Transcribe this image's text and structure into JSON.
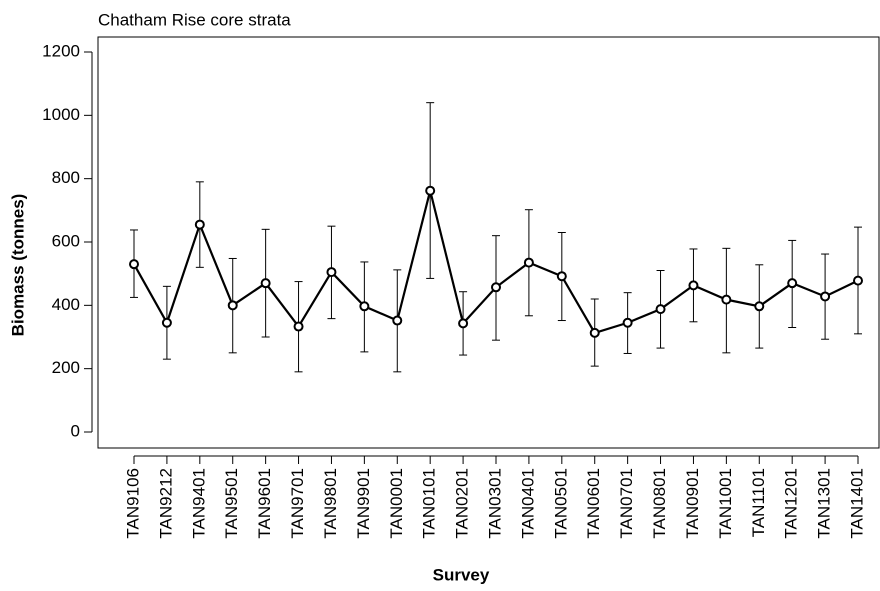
{
  "chart_data": {
    "type": "line",
    "title": "Chatham Rise core strata",
    "x_label": "Survey",
    "y_label": "Biomass (tonnes)",
    "categories": [
      "TAN9106",
      "TAN9212",
      "TAN9401",
      "TAN9501",
      "TAN9601",
      "TAN9701",
      "TAN9801",
      "TAN9901",
      "TAN0001",
      "TAN0101",
      "TAN0201",
      "TAN0301",
      "TAN0401",
      "TAN0501",
      "TAN0601",
      "TAN0701",
      "TAN0801",
      "TAN0901",
      "TAN1001",
      "TAN1101",
      "TAN1201",
      "TAN1301",
      "TAN1401"
    ],
    "series": [
      {
        "color": "#000000",
        "values": [
          530,
          345,
          655,
          400,
          470,
          333,
          505,
          397,
          352,
          762,
          343,
          457,
          535,
          492,
          313,
          345,
          388,
          463,
          418,
          397,
          470,
          428,
          478
        ],
        "lower": [
          425,
          230,
          520,
          250,
          300,
          190,
          358,
          253,
          190,
          485,
          243,
          290,
          367,
          352,
          208,
          248,
          265,
          348,
          250,
          265,
          330,
          293,
          310
        ],
        "upper": [
          638,
          460,
          790,
          548,
          640,
          475,
          650,
          537,
          512,
          1040,
          443,
          620,
          702,
          630,
          420,
          440,
          510,
          578,
          580,
          528,
          605,
          562,
          647
        ]
      }
    ],
    "ylim": [
      0,
      1200
    ],
    "yticks": [
      0,
      200,
      400,
      600,
      800,
      1000,
      1200
    ]
  }
}
